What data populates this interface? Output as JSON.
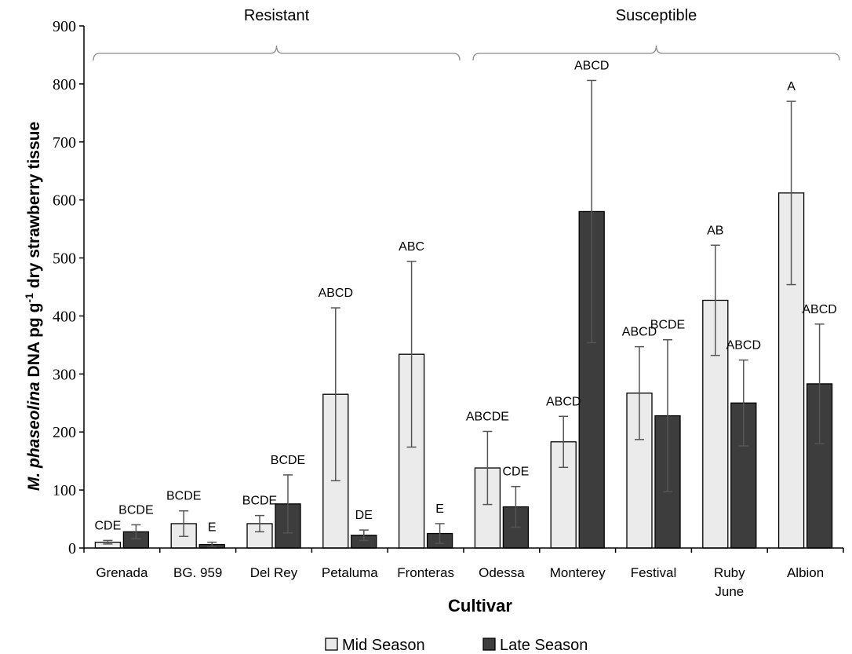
{
  "chart_data": {
    "type": "bar",
    "xlabel": "Cultivar",
    "ylabel": {
      "species": "M. phaseolina",
      "main": " DNA pg g",
      "sup": "-1",
      "tail": " dry strawberry tissue"
    },
    "ylim": [
      0,
      900
    ],
    "yticks": [
      "0",
      "100",
      "200",
      "300",
      "400",
      "500",
      "600",
      "700",
      "800",
      "900"
    ],
    "grid": false,
    "legend_position": "bottom",
    "categories": [
      [
        "Grenada"
      ],
      [
        "BG. 959"
      ],
      [
        "Del Rey"
      ],
      [
        "Petaluma"
      ],
      [
        "Fronteras"
      ],
      [
        "Odessa"
      ],
      [
        "Monterey"
      ],
      [
        "Festival"
      ],
      [
        "Ruby",
        "June"
      ],
      [
        "Albion"
      ]
    ],
    "groups": [
      {
        "label": "Resistant",
        "from": 0,
        "to": 4
      },
      {
        "label": "Susceptible",
        "from": 5,
        "to": 9
      }
    ],
    "series": [
      {
        "name": "Mid Season",
        "color": "#ebebeb",
        "values": [
          10,
          42,
          42,
          265,
          334,
          138,
          183,
          267,
          427,
          612
        ],
        "errors": [
          3,
          22,
          14,
          149,
          160,
          63,
          44,
          80,
          95,
          158
        ],
        "labels": [
          "CDE",
          "BCDE",
          "BCDE",
          "ABCD",
          "ABC",
          "ABCDE",
          "ABCD",
          "ABCD",
          "AB",
          "A"
        ]
      },
      {
        "name": "Late Season",
        "color": "#3d3d3d",
        "values": [
          28,
          6,
          76,
          22,
          25,
          71,
          580,
          228,
          250,
          283
        ],
        "errors": [
          12,
          4,
          50,
          9,
          17,
          35,
          226,
          131,
          74,
          103
        ],
        "labels": [
          "BCDE",
          "E",
          "BCDE",
          "DE",
          "E",
          "CDE",
          "ABCD",
          "BCDE",
          "ABCD",
          "ABCD"
        ]
      }
    ]
  }
}
